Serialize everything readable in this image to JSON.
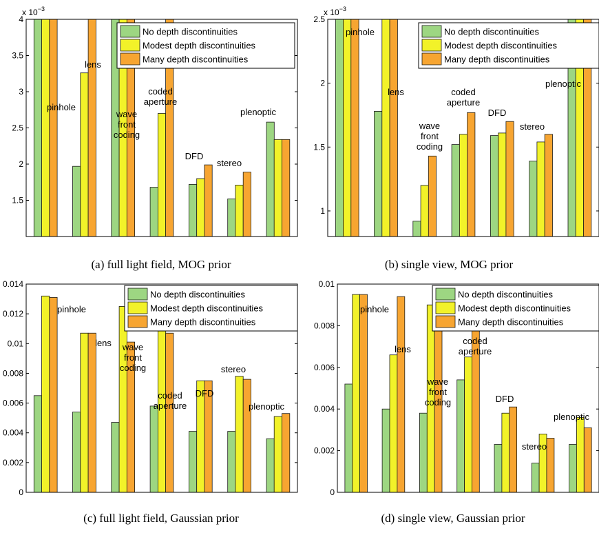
{
  "chart_data": [
    {
      "type": "bar",
      "caption": "(a) full light field, MOG prior",
      "y_exponent": "x 10",
      "y_exponent_power": "−3",
      "ylim": [
        1.0,
        4.0
      ],
      "yticks": [
        1.5,
        2,
        2.5,
        3,
        3.5,
        4
      ],
      "ytick_labels": [
        "1.5",
        "2",
        "2.5",
        "3",
        "3.5",
        "4"
      ],
      "categories": [
        "pinhole",
        "lens",
        "wave front coding",
        "coded aperture",
        "DFD",
        "stereo",
        "plenoptic"
      ],
      "series": [
        {
          "name": "No depth discontinuities",
          "values": [
            4.2,
            1.97,
            4.2,
            1.68,
            1.72,
            1.52,
            2.58
          ]
        },
        {
          "name": "Modest depth discontinuities",
          "values": [
            4.2,
            3.26,
            4.2,
            2.7,
            1.8,
            1.71,
            2.34
          ]
        },
        {
          "name": "Many depth discontinuities",
          "values": [
            4.2,
            4.2,
            4.2,
            4.2,
            1.99,
            1.89,
            2.34
          ]
        }
      ],
      "legend": "top-right",
      "grid": false
    },
    {
      "type": "bar",
      "caption": "(b) single view, MOG prior",
      "y_exponent": "x 10",
      "y_exponent_power": "−3",
      "ylim": [
        0.8,
        2.5
      ],
      "yticks": [
        1,
        1.5,
        2,
        2.5
      ],
      "ytick_labels": [
        "1",
        "1.5",
        "2",
        "2.5"
      ],
      "categories": [
        "pinhole",
        "lens",
        "wave front coding",
        "coded aperture",
        "DFD",
        "stereo",
        "plenoptic"
      ],
      "series": [
        {
          "name": "No depth discontinuities",
          "values": [
            2.6,
            1.78,
            0.92,
            1.52,
            1.59,
            1.39,
            2.6
          ]
        },
        {
          "name": "Modest depth discontinuities",
          "values": [
            2.6,
            2.6,
            1.2,
            1.6,
            1.61,
            1.54,
            2.6
          ]
        },
        {
          "name": "Many depth discontinuities",
          "values": [
            2.6,
            2.6,
            1.43,
            1.77,
            1.7,
            1.6,
            2.6
          ]
        }
      ],
      "legend": "top-right",
      "grid": false
    },
    {
      "type": "bar",
      "caption": "(c) full light field, Gaussian prior",
      "ylim": [
        0,
        0.014
      ],
      "yticks": [
        0,
        0.002,
        0.004,
        0.006,
        0.008,
        0.01,
        0.012,
        0.014
      ],
      "ytick_labels": [
        "0",
        "0.002",
        "0.004",
        "0.006",
        "0.008",
        "0.01",
        "0.012",
        "0.014"
      ],
      "categories": [
        "pinhole",
        "lens",
        "wave front coding",
        "coded aperture",
        "DFD",
        "stereo",
        "plenoptic"
      ],
      "series": [
        {
          "name": "No depth discontinuities",
          "values": [
            0.0065,
            0.0054,
            0.0047,
            0.0058,
            0.0041,
            0.0041,
            0.0036
          ]
        },
        {
          "name": "Modest depth discontinuities",
          "values": [
            0.0132,
            0.0107,
            0.0125,
            0.0125,
            0.0075,
            0.0078,
            0.0051
          ]
        },
        {
          "name": "Many depth discontinuities",
          "values": [
            0.0131,
            0.0107,
            0.0101,
            0.0107,
            0.0075,
            0.0076,
            0.0053
          ]
        }
      ],
      "legend": "top-right",
      "grid": false
    },
    {
      "type": "bar",
      "caption": "(d) single view, Gaussian prior",
      "ylim": [
        0,
        0.01
      ],
      "yticks": [
        0,
        0.002,
        0.004,
        0.006,
        0.008,
        0.01
      ],
      "ytick_labels": [
        "0",
        "0.002",
        "0.004",
        "0.006",
        "0.008",
        "0.01"
      ],
      "categories": [
        "pinhole",
        "lens",
        "wave front coding",
        "coded aperture",
        "DFD",
        "stereo",
        "plenoptic"
      ],
      "series": [
        {
          "name": "No depth discontinuities",
          "values": [
            0.0052,
            0.004,
            0.0038,
            0.0054,
            0.0023,
            0.0014,
            0.0023
          ]
        },
        {
          "name": "Modest depth discontinuities",
          "values": [
            0.0095,
            0.0066,
            0.009,
            0.0065,
            0.0038,
            0.0028,
            0.0036
          ]
        },
        {
          "name": "Many depth discontinuities",
          "values": [
            0.0095,
            0.0094,
            0.009,
            0.0078,
            0.0041,
            0.0026,
            0.0031
          ]
        }
      ],
      "legend": "top-right",
      "grid": false
    }
  ],
  "colors": {
    "series": [
      "#9dd682",
      "#f2f229",
      "#f7a531"
    ],
    "bar_stroke": "#1a1a1a",
    "axis": "#000000"
  }
}
